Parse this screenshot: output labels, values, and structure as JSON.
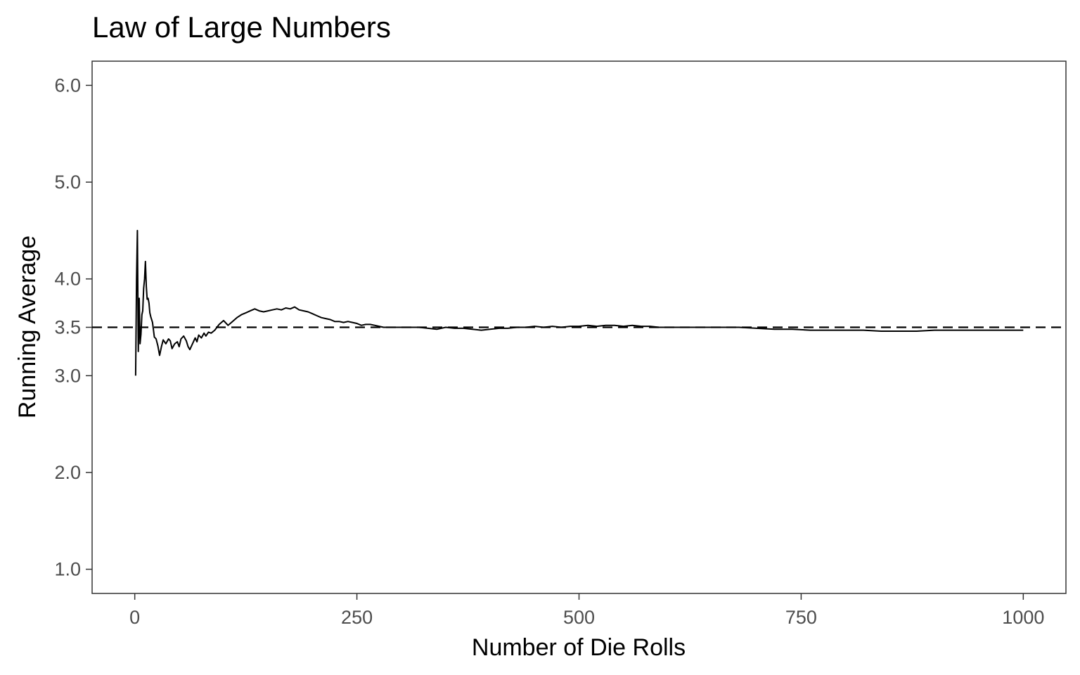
{
  "chart_data": {
    "type": "line",
    "title": "Law of Large Numbers",
    "xlabel": "Number of Die Rolls",
    "ylabel": "Running Average",
    "xlim": [
      -48,
      1048
    ],
    "ylim": [
      0.75,
      6.25
    ],
    "x_ticks": [
      0,
      250,
      500,
      750,
      1000
    ],
    "x_tick_labels": [
      "0",
      "250",
      "500",
      "750",
      "1000"
    ],
    "y_ticks": [
      1.0,
      2.0,
      3.0,
      3.5,
      4.0,
      5.0,
      6.0
    ],
    "y_tick_labels": [
      "1.0",
      "2.0",
      "3.0",
      "3.5",
      "4.0",
      "5.0",
      "6.0"
    ],
    "grid": false,
    "line_color": "#000000",
    "reference_line": {
      "y": 3.5,
      "style": "dashed",
      "color": "#000000"
    },
    "series": [
      {
        "x": [
          1,
          2,
          3,
          4,
          5,
          6,
          7,
          8,
          9,
          10,
          11,
          12,
          13,
          14,
          15,
          16,
          17,
          18,
          20,
          22,
          24,
          26,
          28,
          30,
          32,
          35,
          38,
          40,
          42,
          45,
          48,
          50,
          52,
          55,
          58,
          60,
          62,
          65,
          68,
          70,
          72,
          75,
          78,
          80,
          83,
          86,
          90,
          95,
          100,
          105,
          110,
          115,
          120,
          125,
          130,
          135,
          140,
          145,
          150,
          155,
          160,
          165,
          170,
          175,
          180,
          185,
          190,
          195,
          200,
          205,
          210,
          215,
          220,
          225,
          230,
          235,
          240,
          245,
          250,
          255,
          260,
          265,
          270,
          275,
          280,
          290,
          300,
          310,
          320,
          330,
          340,
          350,
          360,
          370,
          380,
          390,
          400,
          410,
          420,
          430,
          440,
          450,
          460,
          470,
          480,
          490,
          500,
          510,
          520,
          530,
          540,
          550,
          560,
          570,
          580,
          590,
          600,
          620,
          640,
          660,
          680,
          700,
          720,
          740,
          760,
          780,
          800,
          820,
          840,
          860,
          880,
          900,
          920,
          940,
          960,
          980,
          1000
        ],
        "y": [
          3.0,
          4.0,
          4.5,
          3.25,
          3.8,
          3.33,
          3.43,
          3.63,
          3.67,
          3.9,
          4.0,
          4.18,
          3.92,
          3.79,
          3.8,
          3.75,
          3.65,
          3.61,
          3.55,
          3.4,
          3.38,
          3.31,
          3.21,
          3.3,
          3.37,
          3.33,
          3.38,
          3.36,
          3.28,
          3.33,
          3.35,
          3.3,
          3.38,
          3.41,
          3.36,
          3.3,
          3.27,
          3.33,
          3.39,
          3.35,
          3.42,
          3.39,
          3.44,
          3.41,
          3.45,
          3.44,
          3.47,
          3.53,
          3.57,
          3.52,
          3.56,
          3.6,
          3.63,
          3.65,
          3.67,
          3.69,
          3.67,
          3.66,
          3.67,
          3.68,
          3.69,
          3.68,
          3.7,
          3.69,
          3.71,
          3.68,
          3.67,
          3.66,
          3.64,
          3.62,
          3.6,
          3.59,
          3.58,
          3.56,
          3.56,
          3.55,
          3.56,
          3.55,
          3.54,
          3.52,
          3.53,
          3.53,
          3.52,
          3.51,
          3.5,
          3.5,
          3.5,
          3.5,
          3.5,
          3.49,
          3.48,
          3.5,
          3.49,
          3.49,
          3.48,
          3.47,
          3.48,
          3.49,
          3.49,
          3.5,
          3.5,
          3.51,
          3.5,
          3.51,
          3.5,
          3.51,
          3.51,
          3.52,
          3.51,
          3.52,
          3.52,
          3.51,
          3.52,
          3.51,
          3.51,
          3.5,
          3.5,
          3.5,
          3.5,
          3.5,
          3.5,
          3.49,
          3.48,
          3.48,
          3.47,
          3.47,
          3.47,
          3.47,
          3.46,
          3.46,
          3.46,
          3.47,
          3.47,
          3.47,
          3.47,
          3.47,
          3.47
        ]
      }
    ]
  }
}
